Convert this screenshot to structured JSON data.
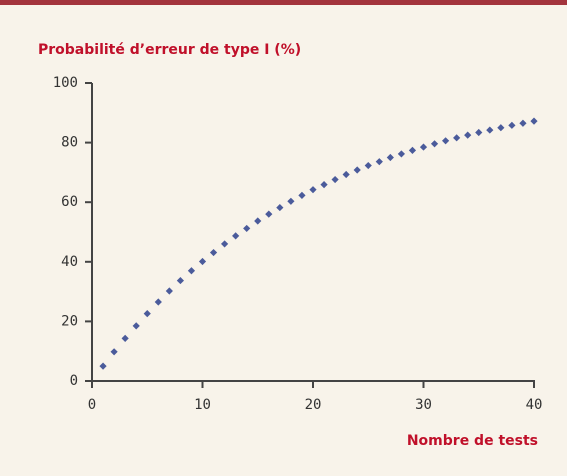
{
  "chart_data": {
    "type": "scatter",
    "title": "Probabilité d’erreur de type I (%)",
    "x_label": "Nombre de tests",
    "x": [
      1,
      2,
      3,
      4,
      5,
      6,
      7,
      8,
      9,
      10,
      11,
      12,
      13,
      14,
      15,
      16,
      17,
      18,
      19,
      20,
      21,
      22,
      23,
      24,
      25,
      26,
      27,
      28,
      29,
      30,
      31,
      32,
      33,
      34,
      35,
      36,
      37,
      38,
      39,
      40
    ],
    "values": [
      5.0,
      9.8,
      14.3,
      18.5,
      22.6,
      26.5,
      30.2,
      33.7,
      37.0,
      40.1,
      43.1,
      46.0,
      48.7,
      51.2,
      53.7,
      56.0,
      58.2,
      60.3,
      62.3,
      64.2,
      65.9,
      67.6,
      69.3,
      70.8,
      72.3,
      73.6,
      75.0,
      76.2,
      77.4,
      78.5,
      79.6,
      80.6,
      81.6,
      82.5,
      83.4,
      84.2,
      85.0,
      85.8,
      86.5,
      87.2
    ],
    "color": "#4b5b9b",
    "xlim": [
      0,
      40
    ],
    "xticks": [
      0,
      10,
      20,
      30,
      40
    ],
    "ylim": [
      0,
      100
    ],
    "yticks": [
      0,
      20,
      40,
      60,
      80,
      100
    ]
  }
}
